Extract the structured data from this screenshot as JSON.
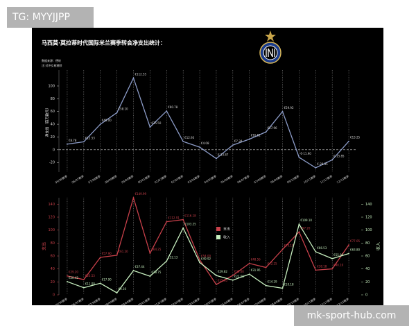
{
  "watermarks": {
    "top": "TG: MYYJJPP",
    "bottom": "mk-sport-hub.com"
  },
  "chart_data": [
    {
      "type": "line",
      "title": "马西莫·莫拉蒂时代国际米兰赛季转会净支出统计：",
      "notes": [
        "数据来源：德转",
        "注:对冲交易剔除"
      ],
      "ylabel": "净支出（百万欧元）",
      "categories": [
        "95/96赛季",
        "96/97赛季",
        "97/98赛季",
        "98/99赛季",
        "99/00赛季",
        "00/01赛季",
        "01/02赛季",
        "02/03赛季",
        "03/04赛季",
        "04/05赛季",
        "05/06赛季",
        "06/07赛季",
        "07/08赛季",
        "08/09赛季",
        "09/10赛季",
        "10/11赛季",
        "11/12赛季",
        "12/13赛季"
      ],
      "series": [
        {
          "color": "#8c9cc8",
          "values": [
            8.78,
            12.53,
            40.0,
            58.1,
            112.55,
            35.5,
            60.78,
            12.93,
            4.08,
            -13.87,
            7.34,
            16.61,
            27.96,
            59.92,
            -11.9,
            -28.35,
            -15.85,
            13.25
          ],
          "value_labels": [
            "€8.78",
            "€12.53",
            "€40.00",
            "€58.10",
            "€112.55",
            "€35.50",
            "€60.78",
            "€12.93",
            "€4.08",
            "€-13.87",
            "€7.34",
            "€16.61",
            "€27.96",
            "€59.92",
            "€-11.90",
            "€-28.35",
            "€-15.85",
            "€13.25"
          ]
        }
      ],
      "ylim": [
        -35,
        125
      ],
      "yticks": [
        -20,
        0,
        20,
        40,
        60,
        80,
        100
      ],
      "xgrid": true
    },
    {
      "type": "line",
      "ylabel": "支出",
      "y2label": "收入",
      "categories": [
        "95/96赛季",
        "96/97赛季",
        "97/98赛季",
        "98/99赛季",
        "99/00赛季",
        "00/01赛季",
        "01/02赛季",
        "02/03赛季",
        "03/04赛季",
        "04/05赛季",
        "05/06赛季",
        "06/07赛季",
        "07/08赛季",
        "08/09赛季",
        "09/10赛季",
        "10/11赛季",
        "11/12赛季",
        "12/13赛季"
      ],
      "series": [
        {
          "name": "支出",
          "color": "#c8404a",
          "values": [
            29.2,
            23.53,
            57.9,
            61.2,
            149.99,
            64.25,
            112.91,
            116.18,
            54.0,
            15.95,
            30.0,
            48.56,
            42.25,
            70.1,
            97.2,
            38.18,
            40.1,
            77.05
          ],
          "value_labels": [
            "€29.20",
            "€23.53",
            "€57.90",
            "€61.20",
            "€149.99",
            "€64.25",
            "€112.91",
            "€116.18",
            "€54.00",
            "€15.95",
            "€30.00",
            "€48.56",
            "€42.25",
            "€70.10",
            "€97.20",
            "€38.18",
            "€40.10",
            "€77.05"
          ]
        },
        {
          "name": "收入",
          "color": "#c8f0c0",
          "axis": "y2",
          "values": [
            20.42,
            11.0,
            17.9,
            3.1,
            37.44,
            28.75,
            52.13,
            103.25,
            49.92,
            29.82,
            22.66,
            31.95,
            14.29,
            10.18,
            109.1,
            66.53,
            55.95,
            63.8
          ],
          "value_labels": [
            "€20.42",
            "€11.00",
            "€17.90",
            "€3.10",
            "€37.44",
            "€28.75",
            "€52.13",
            "€103.25",
            "€49.92",
            "€29.82",
            "€22.66",
            "€31.95",
            "€14.29",
            "€10.18",
            "€109.10",
            "€66.53",
            "€55.95",
            "€63.80"
          ]
        }
      ],
      "ylim": [
        0,
        150
      ],
      "yticks": [
        0,
        20,
        40,
        60,
        80,
        100,
        120,
        140
      ],
      "y2lim": [
        0,
        150
      ],
      "y2ticks": [
        0,
        20,
        40,
        60,
        80,
        100,
        120,
        140
      ],
      "xgrid": true
    }
  ]
}
